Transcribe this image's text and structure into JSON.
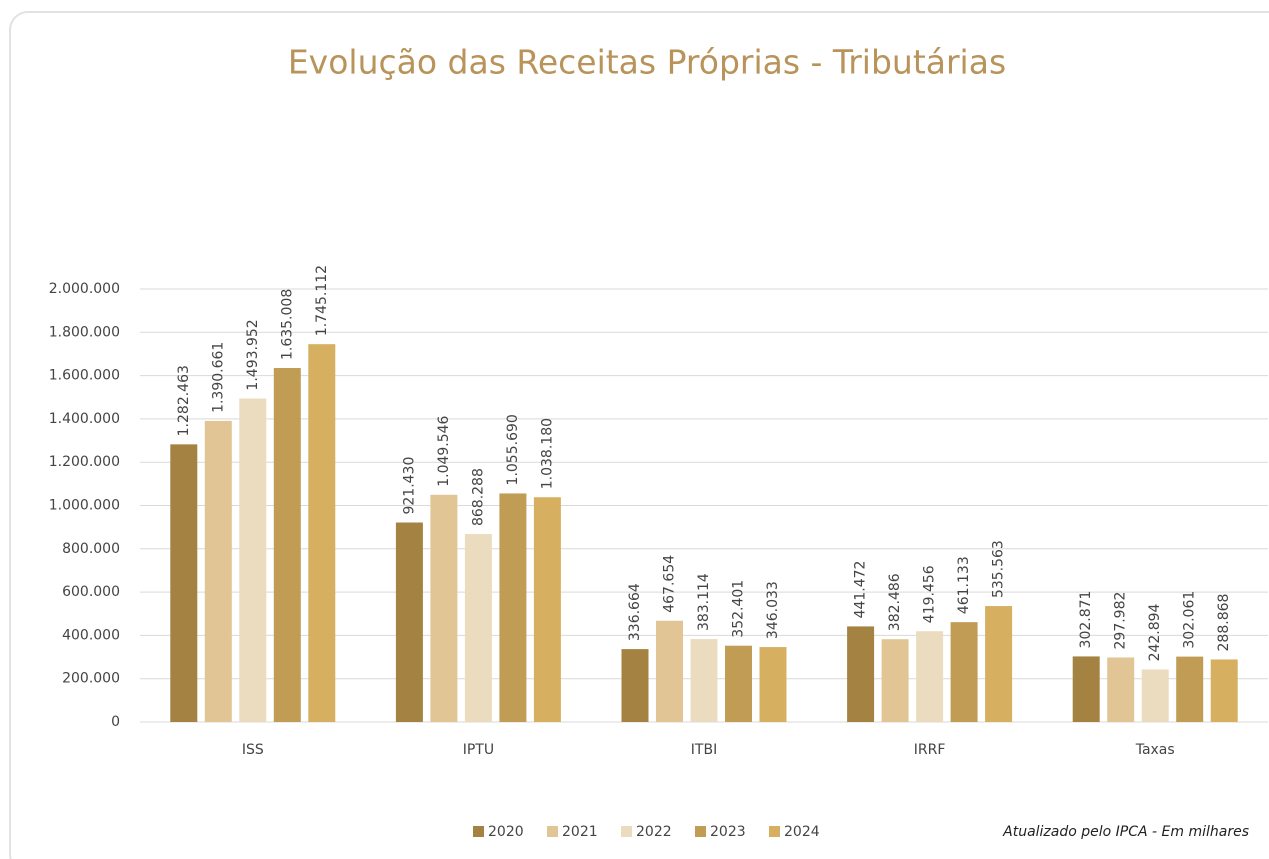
{
  "chart_data": {
    "type": "bar",
    "title": "Evolução das Receitas Próprias - Tributárias",
    "note": "Atualizado pelo IPCA - Em milhares",
    "categories": [
      "ISS",
      "IPTU",
      "ITBI",
      "IRRF",
      "Taxas"
    ],
    "series": [
      {
        "name": "2020",
        "color": "#a48342",
        "values": [
          1282463,
          921430,
          336664,
          441472,
          302871
        ],
        "value_labels": [
          "1.282.463",
          "921.430",
          "336.664",
          "441.472",
          "302.871"
        ]
      },
      {
        "name": "2021",
        "color": "#e2c595",
        "values": [
          1390661,
          1049546,
          467654,
          382486,
          297982
        ],
        "value_labels": [
          "1.390.661",
          "1.049.546",
          "467.654",
          "382.486",
          "297.982"
        ]
      },
      {
        "name": "2022",
        "color": "#ecdcbf",
        "values": [
          1493952,
          868288,
          383114,
          419456,
          242894
        ],
        "value_labels": [
          "1.493.952",
          "868.288",
          "383.114",
          "419.456",
          "242.894"
        ]
      },
      {
        "name": "2023",
        "color": "#c09c55",
        "values": [
          1635008,
          1055690,
          352401,
          461133,
          302061
        ],
        "value_labels": [
          "1.635.008",
          "1.055.690",
          "352.401",
          "461.133",
          "302.061"
        ]
      },
      {
        "name": "2024",
        "color": "#d6b060",
        "values": [
          1745112,
          1038180,
          346033,
          535563,
          288868
        ],
        "value_labels": [
          "1.745.112",
          "1.038.180",
          "346.033",
          "535.563",
          "288.868"
        ]
      }
    ],
    "ylim": [
      0,
      2000000
    ],
    "yticks": [
      0,
      {
        "value": 200000,
        "label": "200.000"
      },
      {
        "value": 400000,
        "label": "400.000"
      },
      {
        "value": 600000,
        "label": "600.000"
      },
      {
        "value": 800000,
        "label": "800.000"
      },
      {
        "value": 1000000,
        "label": "1.000.000"
      },
      {
        "value": 1200000,
        "label": "1.200.000"
      },
      {
        "value": 1400000,
        "label": "1.400.000"
      },
      {
        "value": 1600000,
        "label": "1.600.000"
      },
      {
        "value": 1800000,
        "label": "1.800.000"
      },
      {
        "value": 2000000,
        "label": "2.000.000"
      }
    ],
    "grid": true,
    "legend": "bottom"
  }
}
